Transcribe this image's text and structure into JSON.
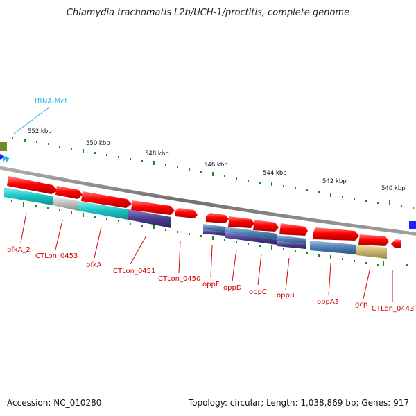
{
  "title": "Chlamydia trachomatis L2b/UCH-1/proctitis, complete genome",
  "footer": {
    "accession": "Accession: NC_010280",
    "summary": "Topology: circular; Length: 1,038,869 bp; Genes: 917"
  },
  "colors": {
    "cds": "#ff0000",
    "backbone": "#808080",
    "tick": "#1f8a1f",
    "label": "#d40000",
    "trna": "#29b6e6",
    "cog_cyan": "#19c4c4",
    "cog_grey": "#bdbdbd",
    "cog_indigo": "#4a3c8c",
    "cog_steel": "#4a7db0",
    "cog_khaki": "#c8b46e",
    "cog_olive": "#6f8a2a",
    "blue_feature": "#1e1eff"
  },
  "scale_labels": [
    "552 kbp",
    "550 kbp",
    "548 kbp",
    "546 kbp",
    "544 kbp",
    "542 kbp",
    "540 kbp"
  ],
  "trna_label": "tRNA-Met",
  "genes": [
    "pfkA_2",
    "CTLon_0453",
    "pfkA",
    "CTLon_0451",
    "CTLon_0450",
    "oppF",
    "oppD",
    "oppC",
    "oppB",
    "oppA3",
    "gcp",
    "CTLon_0443"
  ]
}
